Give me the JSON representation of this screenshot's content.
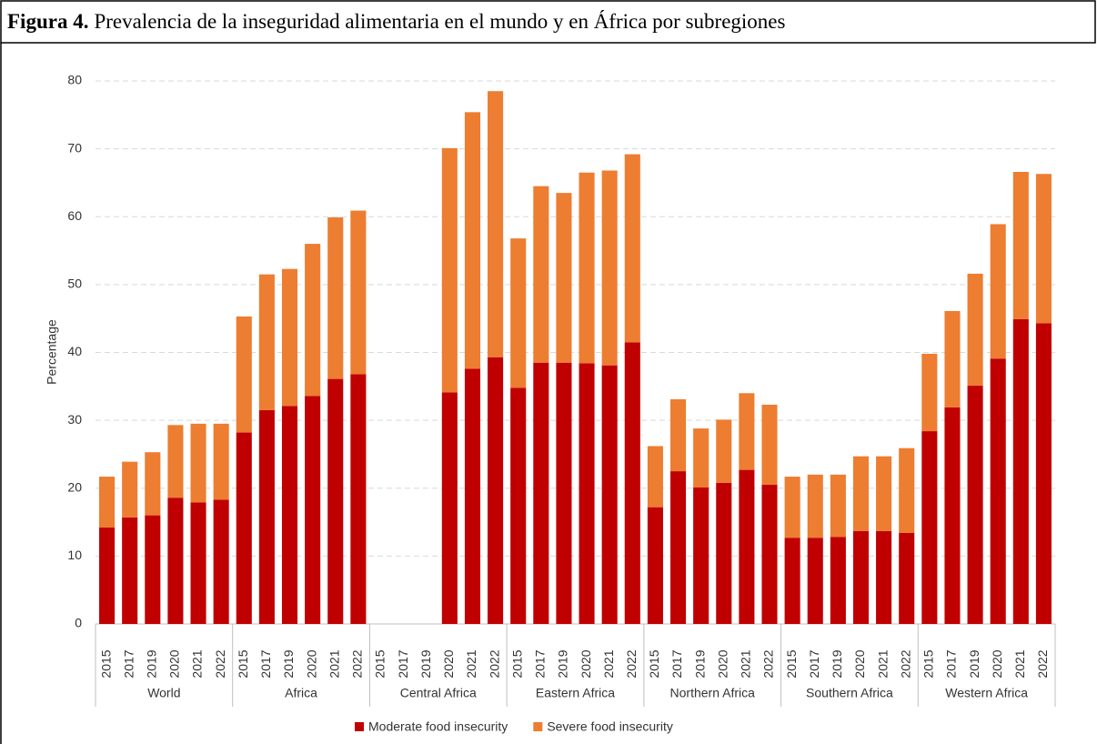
{
  "chart_data": {
    "type": "bar",
    "stacked": true,
    "title_label": "Figura 4.",
    "title": "Prevalencia de la inseguridad alimentaria en el mundo y en África por subregiones",
    "ylabel": "Percentage",
    "groups": [
      "World",
      "Africa",
      "Central Africa",
      "Eastern Africa",
      "Northern Africa",
      "Southern Africa",
      "Western Africa"
    ],
    "categories": [
      "2015",
      "2017",
      "2019",
      "2020",
      "2021",
      "2022",
      "2015",
      "2017",
      "2019",
      "2020",
      "2021",
      "2022",
      "2015",
      "2017",
      "2019",
      "2020",
      "2021",
      "2022",
      "2015",
      "2017",
      "2019",
      "2020",
      "2021",
      "2022",
      "2015",
      "2017",
      "2019",
      "2020",
      "2021",
      "2022",
      "2015",
      "2017",
      "2019",
      "2020",
      "2021",
      "2022",
      "2015",
      "2017",
      "2019",
      "2020",
      "2021",
      "2022"
    ],
    "series": [
      {
        "name": "Moderate food insecurity",
        "color": "#c00000",
        "values": [
          14.2,
          15.7,
          16.0,
          18.6,
          17.9,
          18.3,
          28.2,
          31.5,
          32.1,
          33.6,
          36.1,
          36.8,
          null,
          null,
          null,
          34.1,
          37.6,
          39.3,
          34.8,
          38.5,
          38.5,
          38.4,
          38.1,
          41.5,
          17.2,
          22.5,
          20.1,
          20.8,
          22.7,
          20.5,
          12.7,
          12.7,
          12.8,
          13.7,
          13.7,
          13.4,
          28.4,
          31.9,
          35.1,
          39.1,
          44.9,
          44.3
        ]
      },
      {
        "name": "Severe food insecurity",
        "color": "#ed7d31",
        "values": [
          7.5,
          8.2,
          9.3,
          10.7,
          11.6,
          11.2,
          17.1,
          20.0,
          20.2,
          22.4,
          23.8,
          24.1,
          null,
          null,
          null,
          36.0,
          37.8,
          39.2,
          22.0,
          26.0,
          25.0,
          28.1,
          28.7,
          27.7,
          9.0,
          10.6,
          8.7,
          9.3,
          11.3,
          11.8,
          9.0,
          9.3,
          9.2,
          11.0,
          11.0,
          12.5,
          11.4,
          14.2,
          16.5,
          19.8,
          21.7,
          22.0
        ]
      }
    ],
    "ylim": [
      0,
      80
    ],
    "yticks": [
      0,
      10,
      20,
      30,
      40,
      50,
      60,
      70,
      80
    ],
    "grid": true,
    "legend": "bottom"
  }
}
